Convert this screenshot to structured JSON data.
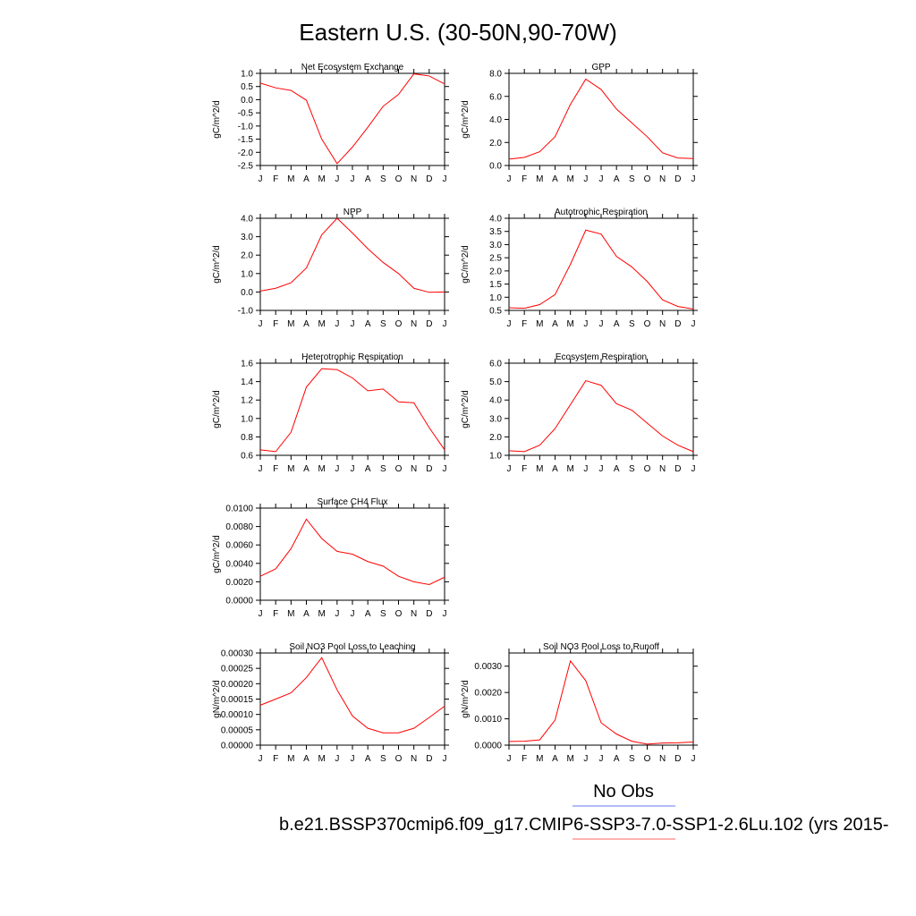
{
  "title": "Eastern U.S. (30-50N,90-70W)",
  "legend": {
    "obs_label": "No Obs",
    "obs_color": "#6677ee",
    "case_label": "b.e21.BSSP370cmip6.f09_g17.CMIP6-SSP3-7.0-SSP1-2.6Lu.102 (yrs 2015-",
    "case_color": "#ff6666"
  },
  "chart_data": [
    {
      "type": "line",
      "title": "Net Ecosystem Exchange",
      "ylabel": "gC/m^2/d",
      "categories": [
        "J",
        "F",
        "M",
        "A",
        "M",
        "J",
        "J",
        "A",
        "S",
        "O",
        "N",
        "D",
        "J"
      ],
      "ylim": [
        -2.5,
        1.0
      ],
      "yticks": [
        1.0,
        0.5,
        0.0,
        -0.5,
        -1.0,
        -1.5,
        -2.0,
        -2.5
      ],
      "ytick_labels": [
        "1.0",
        "0.5",
        "0.0",
        "-0.5",
        "-1.0",
        "-1.5",
        "-2.0",
        "-2.5"
      ],
      "color": "#ff0000",
      "values": [
        0.63,
        0.45,
        0.35,
        -0.02,
        -1.5,
        -2.43,
        -1.8,
        -1.05,
        -0.25,
        0.2,
        0.98,
        0.9,
        0.6
      ]
    },
    {
      "type": "line",
      "title": "GPP",
      "ylabel": "gC/m^2/d",
      "categories": [
        "J",
        "F",
        "M",
        "A",
        "M",
        "J",
        "J",
        "A",
        "S",
        "O",
        "N",
        "D",
        "J"
      ],
      "ylim": [
        0.0,
        8.0
      ],
      "yticks": [
        8.0,
        6.0,
        4.0,
        2.0,
        0.0
      ],
      "ytick_labels": [
        "8.0",
        "6.0",
        "4.0",
        "2.0",
        "0.0"
      ],
      "color": "#ff0000",
      "values": [
        0.55,
        0.7,
        1.2,
        2.5,
        5.3,
        7.5,
        6.6,
        4.9,
        3.7,
        2.5,
        1.1,
        0.65,
        0.6
      ]
    },
    {
      "type": "line",
      "title": "NPP",
      "ylabel": "gC/m^2/d",
      "categories": [
        "J",
        "F",
        "M",
        "A",
        "M",
        "J",
        "J",
        "A",
        "S",
        "O",
        "N",
        "D",
        "J"
      ],
      "ylim": [
        -1.0,
        4.0
      ],
      "yticks": [
        4.0,
        3.0,
        2.0,
        1.0,
        0.0,
        -1.0
      ],
      "ytick_labels": [
        "4.0",
        "3.0",
        "2.0",
        "1.0",
        "0.0",
        "-1.0"
      ],
      "color": "#ff0000",
      "values": [
        0.05,
        0.2,
        0.5,
        1.3,
        3.1,
        4.0,
        3.2,
        2.35,
        1.6,
        1.0,
        0.2,
        -0.02,
        0.0
      ]
    },
    {
      "type": "line",
      "title": "Autotrophic Respiration",
      "ylabel": "gC/m^2/d",
      "categories": [
        "J",
        "F",
        "M",
        "A",
        "M",
        "J",
        "J",
        "A",
        "S",
        "O",
        "N",
        "D",
        "J"
      ],
      "ylim": [
        0.5,
        4.0
      ],
      "yticks": [
        4.0,
        3.5,
        3.0,
        2.5,
        2.0,
        1.5,
        1.0,
        0.5
      ],
      "ytick_labels": [
        "4.0",
        "3.5",
        "3.0",
        "2.5",
        "2.0",
        "1.5",
        "1.0",
        "0.5"
      ],
      "color": "#ff0000",
      "values": [
        0.6,
        0.58,
        0.72,
        1.1,
        2.25,
        3.55,
        3.4,
        2.55,
        2.15,
        1.6,
        0.9,
        0.65,
        0.55
      ]
    },
    {
      "type": "line",
      "title": "Heterotrophic Respiration",
      "ylabel": "gC/m^2/d",
      "categories": [
        "J",
        "F",
        "M",
        "A",
        "M",
        "J",
        "J",
        "A",
        "S",
        "O",
        "N",
        "D",
        "J"
      ],
      "ylim": [
        0.6,
        1.6
      ],
      "yticks": [
        1.6,
        1.4,
        1.2,
        1.0,
        0.8,
        0.6
      ],
      "ytick_labels": [
        "1.6",
        "1.4",
        "1.2",
        "1.0",
        "0.8",
        "0.6"
      ],
      "color": "#ff0000",
      "values": [
        0.66,
        0.64,
        0.85,
        1.34,
        1.54,
        1.53,
        1.44,
        1.3,
        1.32,
        1.18,
        1.17,
        0.9,
        0.66
      ]
    },
    {
      "type": "line",
      "title": "Ecosystem Respiration",
      "ylabel": "gC/m^2/d",
      "categories": [
        "J",
        "F",
        "M",
        "A",
        "M",
        "J",
        "J",
        "A",
        "S",
        "O",
        "N",
        "D",
        "J"
      ],
      "ylim": [
        1.0,
        6.0
      ],
      "yticks": [
        6.0,
        5.0,
        4.0,
        3.0,
        2.0,
        1.0
      ],
      "ytick_labels": [
        "6.0",
        "5.0",
        "4.0",
        "3.0",
        "2.0",
        "1.0"
      ],
      "color": "#ff0000",
      "values": [
        1.25,
        1.2,
        1.55,
        2.45,
        3.75,
        5.05,
        4.8,
        3.8,
        3.45,
        2.75,
        2.05,
        1.55,
        1.2
      ]
    },
    {
      "type": "line",
      "title": "Surface CH4 Flux",
      "ylabel": "gC/m^2/d",
      "categories": [
        "J",
        "F",
        "M",
        "A",
        "M",
        "J",
        "J",
        "A",
        "S",
        "O",
        "N",
        "D",
        "J"
      ],
      "ylim": [
        0.0,
        0.01
      ],
      "yticks": [
        0.01,
        0.008,
        0.006,
        0.004,
        0.002,
        0.0
      ],
      "ytick_labels": [
        "0.0100",
        "0.0080",
        "0.0060",
        "0.0040",
        "0.0020",
        "0.0000"
      ],
      "color": "#ff0000",
      "values": [
        0.0026,
        0.0034,
        0.0056,
        0.0088,
        0.0067,
        0.0053,
        0.005,
        0.0042,
        0.0037,
        0.0026,
        0.002,
        0.0017,
        0.0025
      ]
    },
    {
      "type": "line",
      "title": "Soil NO3 Pool Loss to Leaching",
      "ylabel": "gN/m^2/d",
      "categories": [
        "J",
        "F",
        "M",
        "A",
        "M",
        "J",
        "J",
        "A",
        "S",
        "O",
        "N",
        "D",
        "J"
      ],
      "ylim": [
        0.0,
        0.0003
      ],
      "yticks": [
        0.0003,
        0.00025,
        0.0002,
        0.00015,
        0.0001,
        5e-05,
        0.0
      ],
      "ytick_labels": [
        "0.00030",
        "0.00025",
        "0.00020",
        "0.00015",
        "0.00010",
        "0.00005",
        "0.00000"
      ],
      "color": "#ff0000",
      "values": [
        0.00013,
        0.00015,
        0.00017,
        0.00022,
        0.000285,
        0.00018,
        9.5e-05,
        5.5e-05,
        4e-05,
        4e-05,
        5.5e-05,
        9e-05,
        0.000127
      ]
    },
    {
      "type": "line",
      "title": "Soil NO3 Pool Loss to Runoff",
      "ylabel": "gN/m^2/d",
      "categories": [
        "J",
        "F",
        "M",
        "A",
        "M",
        "J",
        "J",
        "A",
        "S",
        "O",
        "N",
        "D",
        "J"
      ],
      "ylim": [
        0.0,
        0.0035
      ],
      "yticks": [
        0.003,
        0.002,
        0.001,
        0.0
      ],
      "ytick_labels": [
        "0.0030",
        "0.0020",
        "0.0010",
        "0.0000"
      ],
      "color": "#ff0000",
      "values": [
        0.00014,
        0.00015,
        0.0002,
        0.00095,
        0.0032,
        0.00245,
        0.00085,
        0.00042,
        0.00015,
        4e-05,
        8e-05,
        9e-05,
        0.00012
      ]
    }
  ]
}
